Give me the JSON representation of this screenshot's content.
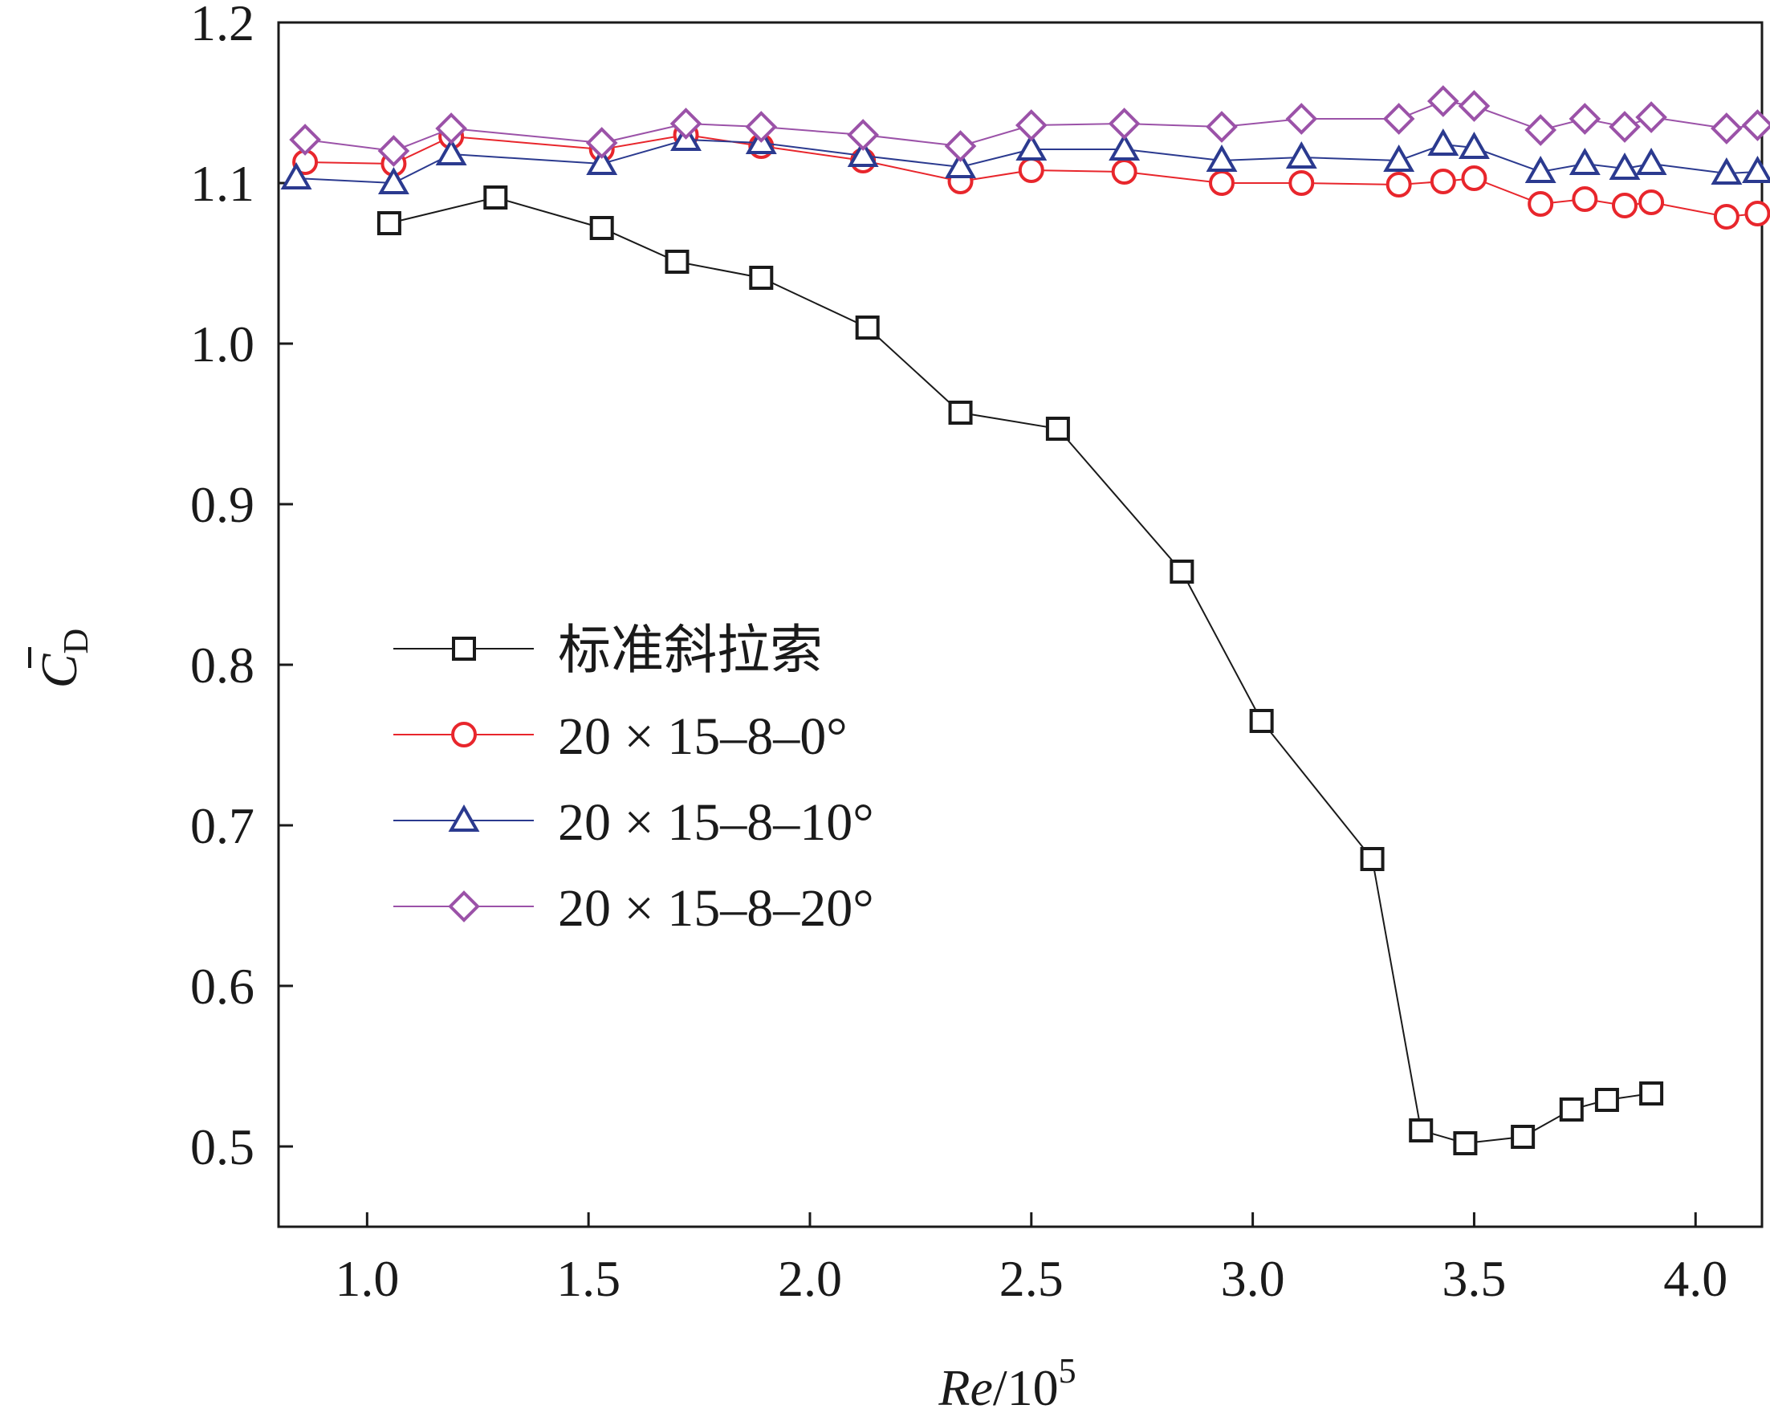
{
  "chart_data": {
    "type": "line",
    "xlabel": {
      "italic": "Re",
      "rest": "/10",
      "sup": "5"
    },
    "ylabel": {
      "main": "C",
      "sub": "D"
    },
    "xlim": [
      0.8,
      4.15
    ],
    "ylim": [
      0.45,
      1.2
    ],
    "xticks": [
      "1.0",
      "1.5",
      "2.0",
      "2.5",
      "3.0",
      "3.5",
      "4.0"
    ],
    "xtick_values": [
      1.0,
      1.5,
      2.0,
      2.5,
      3.0,
      3.5,
      4.0
    ],
    "yticks": [
      "0.5",
      "0.6",
      "0.7",
      "0.8",
      "0.9",
      "1.0",
      "1.1",
      "1.2"
    ],
    "ytick_values": [
      0.5,
      0.6,
      0.7,
      0.8,
      0.9,
      1.0,
      1.1,
      1.2
    ],
    "grid": false,
    "legend_position": "center-left",
    "series": [
      {
        "name": "标准斜拉索",
        "marker": "square",
        "color": "#1a1a1a",
        "x": [
          1.05,
          1.29,
          1.53,
          1.7,
          1.89,
          2.13,
          2.34,
          2.56,
          2.84,
          3.02,
          3.27,
          3.38,
          3.48,
          3.61,
          3.72,
          3.8,
          3.9
        ],
        "y": [
          1.075,
          1.091,
          1.072,
          1.051,
          1.041,
          1.01,
          0.957,
          0.947,
          0.858,
          0.765,
          0.679,
          0.51,
          0.502,
          0.506,
          0.523,
          0.529,
          0.533
        ]
      },
      {
        "name": "20 × 15–8–0°",
        "marker": "circle",
        "color": "#e8262c",
        "x": [
          0.86,
          1.06,
          1.19,
          1.53,
          1.72,
          1.89,
          2.12,
          2.34,
          2.5,
          2.71,
          2.93,
          3.11,
          3.33,
          3.43,
          3.5,
          3.65,
          3.75,
          3.84,
          3.9,
          4.07,
          4.14
        ],
        "y": [
          1.113,
          1.112,
          1.129,
          1.121,
          1.13,
          1.123,
          1.114,
          1.101,
          1.108,
          1.107,
          1.1,
          1.1,
          1.099,
          1.101,
          1.103,
          1.087,
          1.09,
          1.086,
          1.088,
          1.079,
          1.081
        ]
      },
      {
        "name": "20 × 15–8–10°",
        "marker": "triangle",
        "color": "#2b3a8f",
        "x": [
          0.84,
          1.06,
          1.19,
          1.53,
          1.72,
          1.89,
          2.12,
          2.34,
          2.5,
          2.71,
          2.93,
          3.11,
          3.33,
          3.43,
          3.5,
          3.65,
          3.75,
          3.84,
          3.9,
          4.07,
          4.14
        ],
        "y": [
          1.103,
          1.1,
          1.118,
          1.112,
          1.127,
          1.125,
          1.117,
          1.11,
          1.121,
          1.121,
          1.114,
          1.116,
          1.114,
          1.124,
          1.122,
          1.107,
          1.112,
          1.109,
          1.112,
          1.106,
          1.107
        ]
      },
      {
        "name": "20 × 15–8–20°",
        "marker": "diamond",
        "color": "#9b52a8",
        "x": [
          0.86,
          1.06,
          1.19,
          1.53,
          1.72,
          1.89,
          2.12,
          2.34,
          2.5,
          2.71,
          2.93,
          3.11,
          3.33,
          3.43,
          3.5,
          3.65,
          3.75,
          3.84,
          3.9,
          4.07,
          4.14
        ],
        "y": [
          1.127,
          1.12,
          1.134,
          1.125,
          1.137,
          1.135,
          1.13,
          1.123,
          1.136,
          1.137,
          1.135,
          1.14,
          1.14,
          1.151,
          1.148,
          1.133,
          1.14,
          1.135,
          1.141,
          1.134,
          1.136
        ]
      }
    ]
  }
}
